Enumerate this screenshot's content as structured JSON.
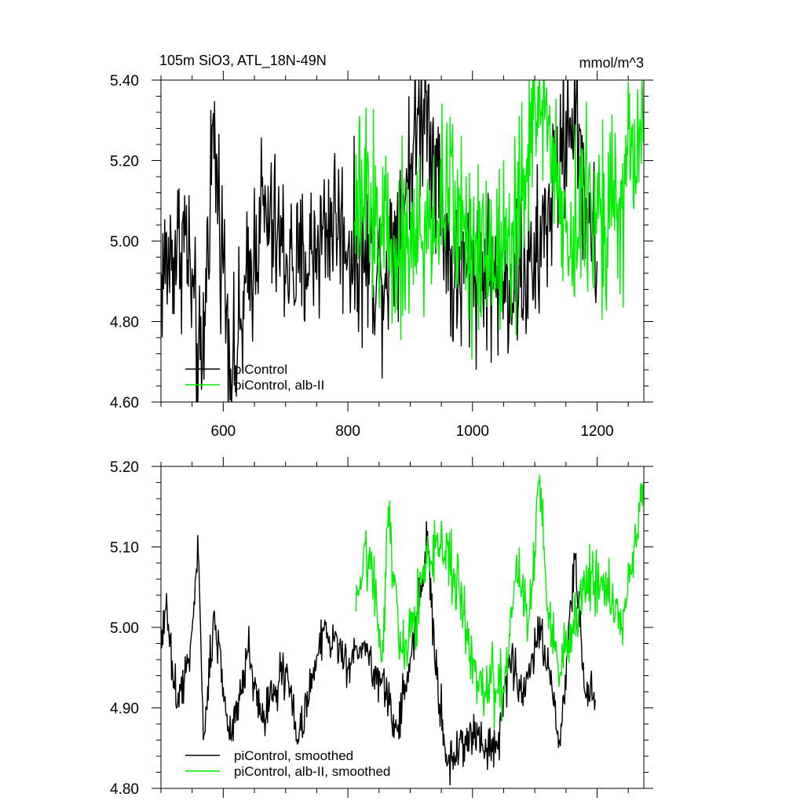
{
  "chart_data": [
    {
      "type": "line",
      "title_left": "105m SiO3, ATL_18N-49N",
      "title_right": "mmol/m^3",
      "xlim": [
        500,
        1275
      ],
      "ylim": [
        4.6,
        5.4
      ],
      "x_ticks": [
        600,
        800,
        1000,
        1200
      ],
      "x_tick_labels": [
        "600",
        "800",
        "1000",
        "1200"
      ],
      "y_ticks": [
        4.6,
        4.8,
        5.0,
        5.2,
        5.4
      ],
      "y_tick_labels": [
        "4.60",
        "4.80",
        "5.00",
        "5.20",
        "5.40"
      ],
      "legend_position": "bottom-left",
      "series": [
        {
          "name": "piControl",
          "color": "#000000",
          "x_range": [
            500,
            1200
          ],
          "keypoints": [
            [
              500,
              4.92
            ],
            [
              540,
              5.02
            ],
            [
              565,
              4.63
            ],
            [
              583,
              5.29
            ],
            [
              615,
              4.66
            ],
            [
              660,
              5.07
            ],
            [
              720,
              4.92
            ],
            [
              780,
              5.07
            ],
            [
              800,
              4.98
            ],
            [
              860,
              4.92
            ],
            [
              925,
              5.37
            ],
            [
              970,
              4.88
            ],
            [
              1000,
              4.95
            ],
            [
              1050,
              4.9
            ],
            [
              1100,
              4.93
            ],
            [
              1160,
              5.33
            ],
            [
              1200,
              4.95
            ]
          ],
          "noise": 0.1
        },
        {
          "name": "piControl, alb-II",
          "color": "#00ee00",
          "x_range": [
            811,
            1275
          ],
          "keypoints": [
            [
              811,
              5.05
            ],
            [
              830,
              5.1
            ],
            [
              870,
              5.0
            ],
            [
              920,
              5.0
            ],
            [
              960,
              5.12
            ],
            [
              1000,
              5.0
            ],
            [
              1040,
              4.98
            ],
            [
              1080,
              5.1
            ],
            [
              1108,
              5.39
            ],
            [
              1150,
              5.02
            ],
            [
              1200,
              5.1
            ],
            [
              1240,
              5.08
            ],
            [
              1275,
              5.3
            ]
          ],
          "noise": 0.11
        }
      ]
    },
    {
      "type": "line",
      "xlim": [
        500,
        1275
      ],
      "ylim": [
        4.8,
        5.2
      ],
      "x_ticks": [
        600,
        800,
        1000,
        1200
      ],
      "x_tick_labels": [],
      "y_ticks": [
        4.8,
        4.9,
        5.0,
        5.1,
        5.2
      ],
      "y_tick_labels": [
        "4.80",
        "4.90",
        "5.00",
        "5.10",
        "5.20"
      ],
      "legend_position": "bottom-left",
      "series": [
        {
          "name": "piControl, smoothed",
          "color": "#000000",
          "x_range": [
            500,
            1197
          ],
          "keypoints": [
            [
              500,
              5.0
            ],
            [
              510,
              5.02
            ],
            [
              525,
              4.9
            ],
            [
              545,
              4.96
            ],
            [
              560,
              5.09
            ],
            [
              568,
              4.86
            ],
            [
              585,
              5.02
            ],
            [
              610,
              4.86
            ],
            [
              640,
              4.97
            ],
            [
              660,
              4.89
            ],
            [
              700,
              4.95
            ],
            [
              720,
              4.86
            ],
            [
              760,
              5.0
            ],
            [
              800,
              4.95
            ],
            [
              825,
              4.98
            ],
            [
              860,
              4.92
            ],
            [
              880,
              4.87
            ],
            [
              900,
              4.96
            ],
            [
              920,
              5.06
            ],
            [
              928,
              5.12
            ],
            [
              940,
              4.95
            ],
            [
              960,
              4.83
            ],
            [
              1000,
              4.87
            ],
            [
              1040,
              4.85
            ],
            [
              1060,
              4.96
            ],
            [
              1080,
              4.92
            ],
            [
              1110,
              5.0
            ],
            [
              1140,
              4.86
            ],
            [
              1165,
              5.09
            ],
            [
              1180,
              4.92
            ],
            [
              1197,
              4.91
            ]
          ],
          "noise": 0.015
        },
        {
          "name": "piControl, alb-II, smoothed",
          "color": "#00ee00",
          "x_range": [
            813,
            1275
          ],
          "keypoints": [
            [
              813,
              5.02
            ],
            [
              835,
              5.1
            ],
            [
              855,
              4.96
            ],
            [
              865,
              5.15
            ],
            [
              885,
              4.97
            ],
            [
              910,
              5.02
            ],
            [
              930,
              5.09
            ],
            [
              960,
              5.1
            ],
            [
              980,
              5.04
            ],
            [
              1010,
              4.92
            ],
            [
              1030,
              4.93
            ],
            [
              1050,
              4.92
            ],
            [
              1070,
              5.08
            ],
            [
              1090,
              5.01
            ],
            [
              1108,
              5.19
            ],
            [
              1120,
              5.02
            ],
            [
              1140,
              4.94
            ],
            [
              1160,
              5.0
            ],
            [
              1190,
              5.07
            ],
            [
              1220,
              5.04
            ],
            [
              1240,
              5.0
            ],
            [
              1260,
              5.1
            ],
            [
              1275,
              5.18
            ]
          ],
          "noise": 0.02
        }
      ]
    }
  ]
}
